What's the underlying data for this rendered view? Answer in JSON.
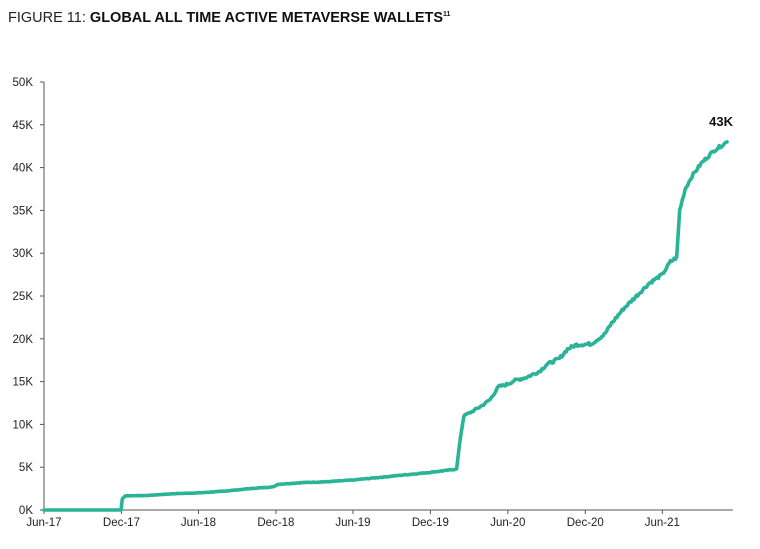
{
  "title": {
    "prefix": "FIGURE 11: ",
    "main": "GLOBAL ALL TIME ACTIVE METAVERSE WALLETS",
    "superscript": "11"
  },
  "chart_data": {
    "type": "line",
    "title": "GLOBAL ALL TIME ACTIVE METAVERSE WALLETS",
    "xlabel": "",
    "ylabel": "",
    "x_ticks": [
      "Jun-17",
      "Dec-17",
      "Jun-18",
      "Dec-18",
      "Jun-19",
      "Dec-19",
      "Jun-20",
      "Dec-20",
      "Jun-21"
    ],
    "y_ticks": [
      "0K",
      "5K",
      "10K",
      "15K",
      "20K",
      "25K",
      "30K",
      "35K",
      "40K",
      "45K",
      "50K"
    ],
    "ylim": [
      0,
      50000
    ],
    "xlim": [
      "2017-06-01",
      "2021-11-15"
    ],
    "grid": false,
    "line_color": "#2ab397",
    "end_label": "43K",
    "series": [
      {
        "points": [
          [
            "2017-06-01",
            0
          ],
          [
            "2017-11-30",
            0
          ],
          [
            "2017-12-03",
            1300
          ],
          [
            "2017-12-10",
            1650
          ],
          [
            "2018-02-01",
            1700
          ],
          [
            "2018-04-01",
            1900
          ],
          [
            "2018-06-01",
            2000
          ],
          [
            "2018-08-01",
            2200
          ],
          [
            "2018-10-01",
            2500
          ],
          [
            "2018-11-25",
            2700
          ],
          [
            "2018-12-05",
            3000
          ],
          [
            "2019-02-01",
            3200
          ],
          [
            "2019-04-01",
            3300
          ],
          [
            "2019-06-01",
            3500
          ],
          [
            "2019-08-01",
            3800
          ],
          [
            "2019-10-01",
            4100
          ],
          [
            "2019-12-01",
            4400
          ],
          [
            "2020-01-20",
            4700
          ],
          [
            "2020-02-01",
            4800
          ],
          [
            "2020-02-10",
            8500
          ],
          [
            "2020-02-18",
            11000
          ],
          [
            "2020-03-05",
            11400
          ],
          [
            "2020-04-01",
            12200
          ],
          [
            "2020-04-20",
            12900
          ],
          [
            "2020-05-10",
            14400
          ],
          [
            "2020-06-01",
            14700
          ],
          [
            "2020-06-15",
            15100
          ],
          [
            "2020-07-15",
            15500
          ],
          [
            "2020-08-15",
            16200
          ],
          [
            "2020-09-01",
            17000
          ],
          [
            "2020-10-01",
            17700
          ],
          [
            "2020-10-20",
            18800
          ],
          [
            "2020-11-10",
            19300
          ],
          [
            "2020-12-15",
            19400
          ],
          [
            "2021-01-15",
            20500
          ],
          [
            "2021-02-01",
            21800
          ],
          [
            "2021-03-01",
            23500
          ],
          [
            "2021-04-01",
            25000
          ],
          [
            "2021-05-01",
            26500
          ],
          [
            "2021-06-01",
            27500
          ],
          [
            "2021-06-20",
            29000
          ],
          [
            "2021-07-05",
            29500
          ],
          [
            "2021-07-12",
            35000
          ],
          [
            "2021-07-25",
            37500
          ],
          [
            "2021-08-10",
            39000
          ],
          [
            "2021-09-01",
            40500
          ],
          [
            "2021-10-01",
            42000
          ],
          [
            "2021-11-01",
            43000
          ]
        ]
      }
    ]
  }
}
